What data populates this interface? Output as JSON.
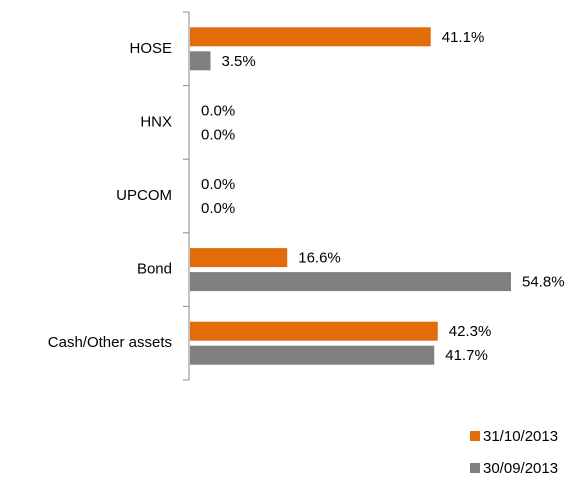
{
  "chart_data": {
    "type": "bar",
    "orientation": "horizontal",
    "categories": [
      "HOSE",
      "HNX",
      "UPCOM",
      "Bond",
      "Cash/Other assets"
    ],
    "series": [
      {
        "name": "31/10/2013",
        "color": "#e36c0a",
        "values": [
          41.1,
          0,
          0,
          16.6,
          42.3
        ],
        "value_labels": [
          "41.1%",
          "0.0%",
          "0.0%",
          "16.6%",
          "42.3%"
        ]
      },
      {
        "name": "30/09/2013",
        "color": "#808080",
        "values": [
          3.5,
          0,
          0,
          54.8,
          41.7
        ],
        "value_labels": [
          "3.5%",
          "0.0%",
          "0.0%",
          "54.8%",
          "41.7%"
        ]
      }
    ],
    "legend": "bottom-right"
  }
}
